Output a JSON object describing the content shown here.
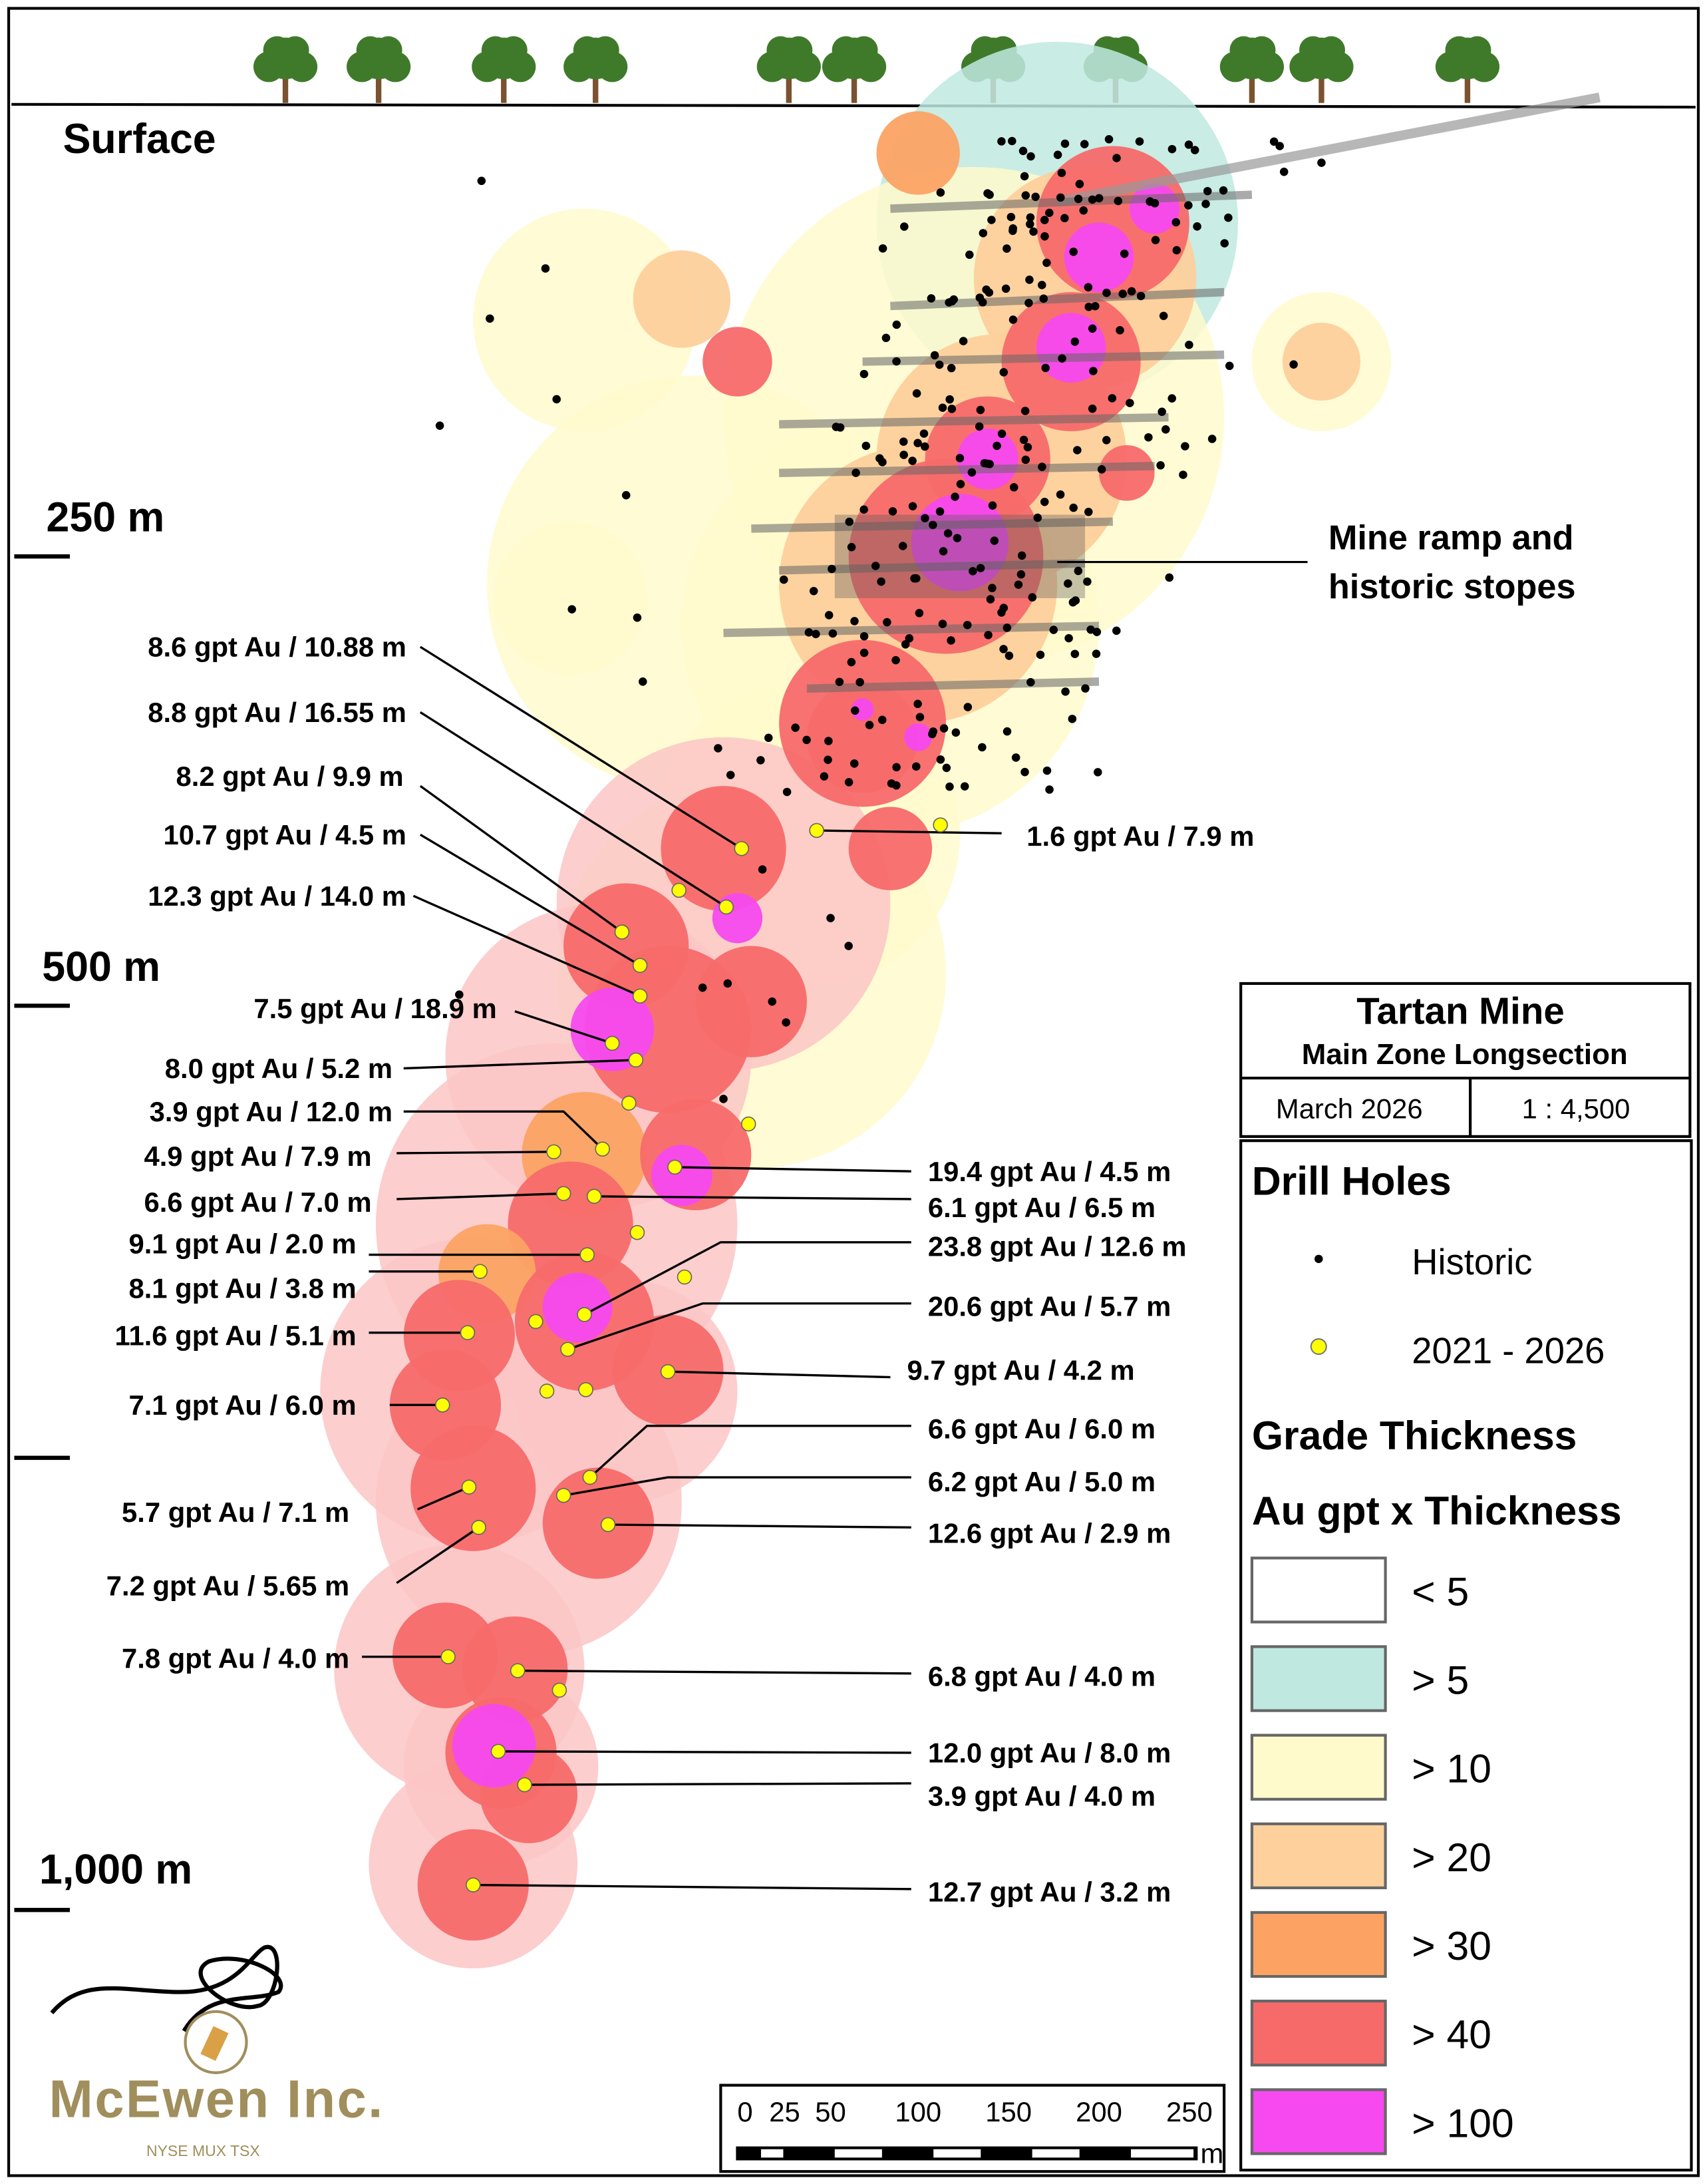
{
  "depth_labels": {
    "surface": "Surface",
    "d250": "250 m",
    "d500": "500 m",
    "d1000": "1,000 m"
  },
  "annotation_ramp": [
    "Mine ramp and",
    "historic stopes"
  ],
  "assays_left": [
    "8.6 gpt Au / 10.88 m",
    "8.8 gpt Au / 16.55 m",
    "8.2 gpt Au / 9.9 m",
    "10.7 gpt Au / 4.5 m",
    "12.3 gpt Au / 14.0 m",
    "7.5 gpt Au / 18.9 m",
    "8.0 gpt Au / 5.2 m",
    "3.9 gpt Au / 12.0 m",
    "4.9 gpt Au / 7.9 m",
    "6.6 gpt Au / 7.0 m",
    "9.1 gpt Au / 2.0 m",
    "8.1 gpt Au / 3.8 m",
    "11.6 gpt Au / 5.1 m",
    "7.1 gpt Au / 6.0 m",
    "5.7 gpt Au / 7.1 m",
    "7.2 gpt Au / 5.65 m",
    "7.8 gpt Au / 4.0 m"
  ],
  "assays_right": [
    "1.6 gpt Au / 7.9 m",
    "19.4 gpt Au / 4.5 m",
    "6.1 gpt Au / 6.5 m",
    "23.8 gpt Au / 12.6 m",
    "20.6 gpt Au / 5.7 m",
    "9.7 gpt Au / 4.2 m",
    "6.6 gpt Au / 6.0 m",
    "6.2 gpt Au / 5.0 m",
    "12.6 gpt Au / 2.9 m",
    "6.8 gpt Au / 4.0 m",
    "12.0 gpt Au / 8.0 m",
    "3.9 gpt Au / 4.0 m",
    "12.7 gpt Au / 3.2 m"
  ],
  "title_block": {
    "title": "Tartan Mine",
    "subtitle": "Main Zone Longsection",
    "date": "March 2026",
    "scale": "1 : 4,500"
  },
  "legend": {
    "drill_holes_title": "Drill Holes",
    "historic": "Historic",
    "recent": "2021 - 2026",
    "grade_title": "Grade Thickness",
    "grade_subtitle": "Au gpt x Thickness",
    "classes": [
      {
        "label": "< 5",
        "color": "#ffffff"
      },
      {
        "label": "> 5",
        "color": "#bfe9e0"
      },
      {
        "label": "> 10",
        "color": "#fffacc"
      },
      {
        "label": "> 20",
        "color": "#fdd09c"
      },
      {
        "label": "> 30",
        "color": "#fca364"
      },
      {
        "label": "> 40",
        "color": "#f76a6a"
      },
      {
        "label": "> 100",
        "color": "#f649ef"
      }
    ],
    "historic_color": "#000000",
    "recent_color": "#ffff00"
  },
  "scale_bar": {
    "ticks": [
      "0",
      "25",
      "50",
      "100",
      "150",
      "200",
      "250"
    ],
    "unit": "m"
  },
  "logo": {
    "name": "McEwen Inc.",
    "exchanges": "NYSE MUX TSX",
    "color": "#a08e5c"
  }
}
